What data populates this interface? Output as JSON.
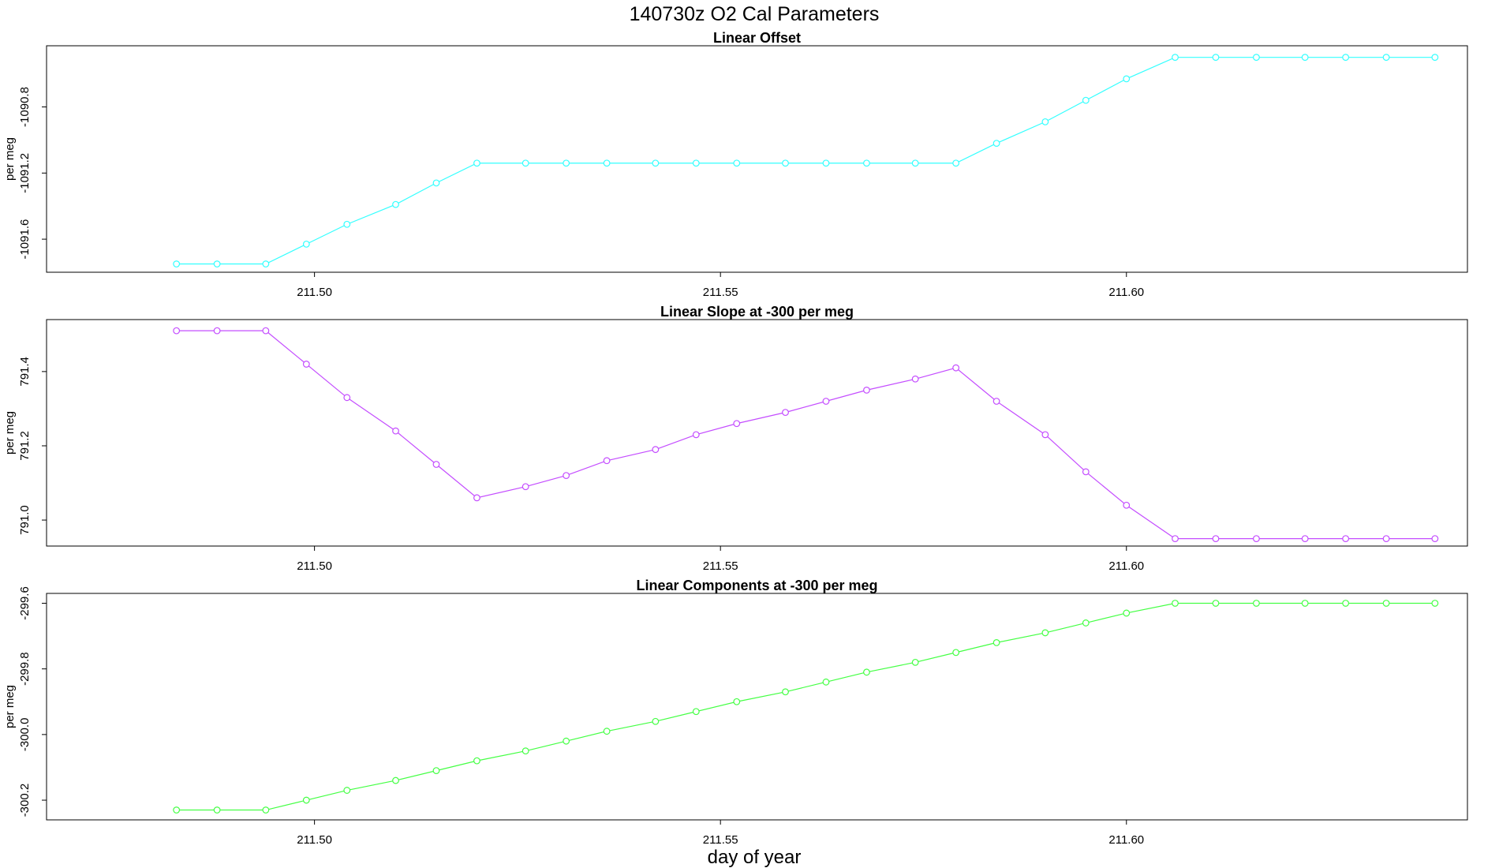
{
  "title": "140730z    O2 Cal Parameters",
  "xlabel": "day of year",
  "chart_data": [
    {
      "type": "line",
      "title": "Linear Offset",
      "ylabel": "per meg",
      "color": "#33ffff",
      "xlim": [
        211.467,
        211.642
      ],
      "ylim": [
        -1091.8,
        -1090.43
      ],
      "xticks": [
        "211.50",
        "211.55",
        "211.60"
      ],
      "yticks": [
        "-1091.6",
        "-1091.2",
        "-1090.8"
      ],
      "x": [
        211.483,
        211.488,
        211.494,
        211.499,
        211.504,
        211.51,
        211.515,
        211.52,
        211.526,
        211.531,
        211.536,
        211.542,
        211.547,
        211.552,
        211.558,
        211.563,
        211.568,
        211.574,
        211.579,
        211.584,
        211.59,
        211.595,
        211.6,
        211.606,
        211.611,
        211.616,
        211.622,
        211.627,
        211.632,
        211.638
      ],
      "y": [
        -1091.75,
        -1091.75,
        -1091.75,
        -1091.63,
        -1091.51,
        -1091.39,
        -1091.26,
        -1091.14,
        -1091.14,
        -1091.14,
        -1091.14,
        -1091.14,
        -1091.14,
        -1091.14,
        -1091.14,
        -1091.14,
        -1091.14,
        -1091.14,
        -1091.14,
        -1091.02,
        -1090.89,
        -1090.76,
        -1090.63,
        -1090.5,
        -1090.5,
        -1090.5,
        -1090.5,
        -1090.5,
        -1090.5,
        -1090.5
      ]
    },
    {
      "type": "line",
      "title": "Linear Slope at -300 per meg",
      "ylabel": "per meg",
      "color": "#c44dff",
      "xlim": [
        211.467,
        211.642
      ],
      "ylim": [
        790.93,
        791.54
      ],
      "xticks": [
        "211.50",
        "211.55",
        "211.60"
      ],
      "yticks": [
        "791.0",
        "791.2",
        "791.4"
      ],
      "x": [
        211.483,
        211.488,
        211.494,
        211.499,
        211.504,
        211.51,
        211.515,
        211.52,
        211.526,
        211.531,
        211.536,
        211.542,
        211.547,
        211.552,
        211.558,
        211.563,
        211.568,
        211.574,
        211.579,
        211.584,
        211.59,
        211.595,
        211.6,
        211.606,
        211.611,
        211.616,
        211.622,
        211.627,
        211.632,
        211.638
      ],
      "y": [
        791.51,
        791.51,
        791.51,
        791.42,
        791.33,
        791.24,
        791.15,
        791.06,
        791.09,
        791.12,
        791.16,
        791.19,
        791.23,
        791.26,
        791.29,
        791.32,
        791.35,
        791.38,
        791.41,
        791.32,
        791.23,
        791.13,
        791.04,
        790.95,
        790.95,
        790.95,
        790.95,
        790.95,
        790.95,
        790.95
      ]
    },
    {
      "type": "line",
      "title": "Linear Components at -300 per meg",
      "ylabel": "per meg",
      "color": "#44ff44",
      "xlim": [
        211.467,
        211.642
      ],
      "ylim": [
        -300.26,
        -299.57
      ],
      "xticks": [
        "211.50",
        "211.55",
        "211.60"
      ],
      "yticks": [
        "-300.2",
        "-300.0",
        "-299.8",
        "-299.6"
      ],
      "x": [
        211.483,
        211.488,
        211.494,
        211.499,
        211.504,
        211.51,
        211.515,
        211.52,
        211.526,
        211.531,
        211.536,
        211.542,
        211.547,
        211.552,
        211.558,
        211.563,
        211.568,
        211.574,
        211.579,
        211.584,
        211.59,
        211.595,
        211.6,
        211.606,
        211.611,
        211.616,
        211.622,
        211.627,
        211.632,
        211.638
      ],
      "y": [
        -300.23,
        -300.23,
        -300.23,
        -300.2,
        -300.17,
        -300.14,
        -300.11,
        -300.08,
        -300.05,
        -300.02,
        -299.99,
        -299.96,
        -299.93,
        -299.9,
        -299.87,
        -299.84,
        -299.81,
        -299.78,
        -299.75,
        -299.72,
        -299.69,
        -299.66,
        -299.63,
        -299.6,
        -299.6,
        -299.6,
        -299.6,
        -299.6,
        -299.6,
        -299.6
      ]
    }
  ]
}
